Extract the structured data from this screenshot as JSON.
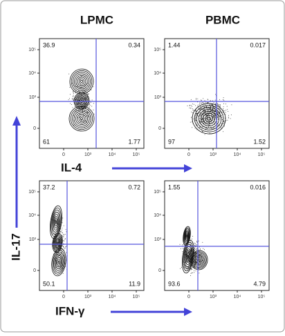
{
  "column_titles": [
    "LPMC",
    "PBMC"
  ],
  "panels": [
    {
      "quadrants": {
        "upper_left": "36.9",
        "upper_right": "0.34",
        "lower_left": "61",
        "lower_right": "1.77"
      }
    },
    {
      "quadrants": {
        "upper_left": "1.44",
        "upper_right": "0.017",
        "lower_left": "97",
        "lower_right": "1.52"
      }
    },
    {
      "quadrants": {
        "upper_left": "37.2",
        "upper_right": "0.72",
        "lower_left": "50.1",
        "lower_right": "11.9"
      }
    },
    {
      "quadrants": {
        "upper_left": "1.55",
        "upper_right": "0.016",
        "lower_left": "93.6",
        "lower_right": "4.79"
      }
    }
  ],
  "y_ticks": [
    "10⁵",
    "10⁴",
    "10³",
    "0"
  ],
  "x_ticks": [
    "0",
    "10³",
    "10⁴",
    "10⁵"
  ],
  "x_axis_labels": [
    "IL-4",
    "IFN-γ"
  ],
  "y_axis_label": "IL-17"
}
